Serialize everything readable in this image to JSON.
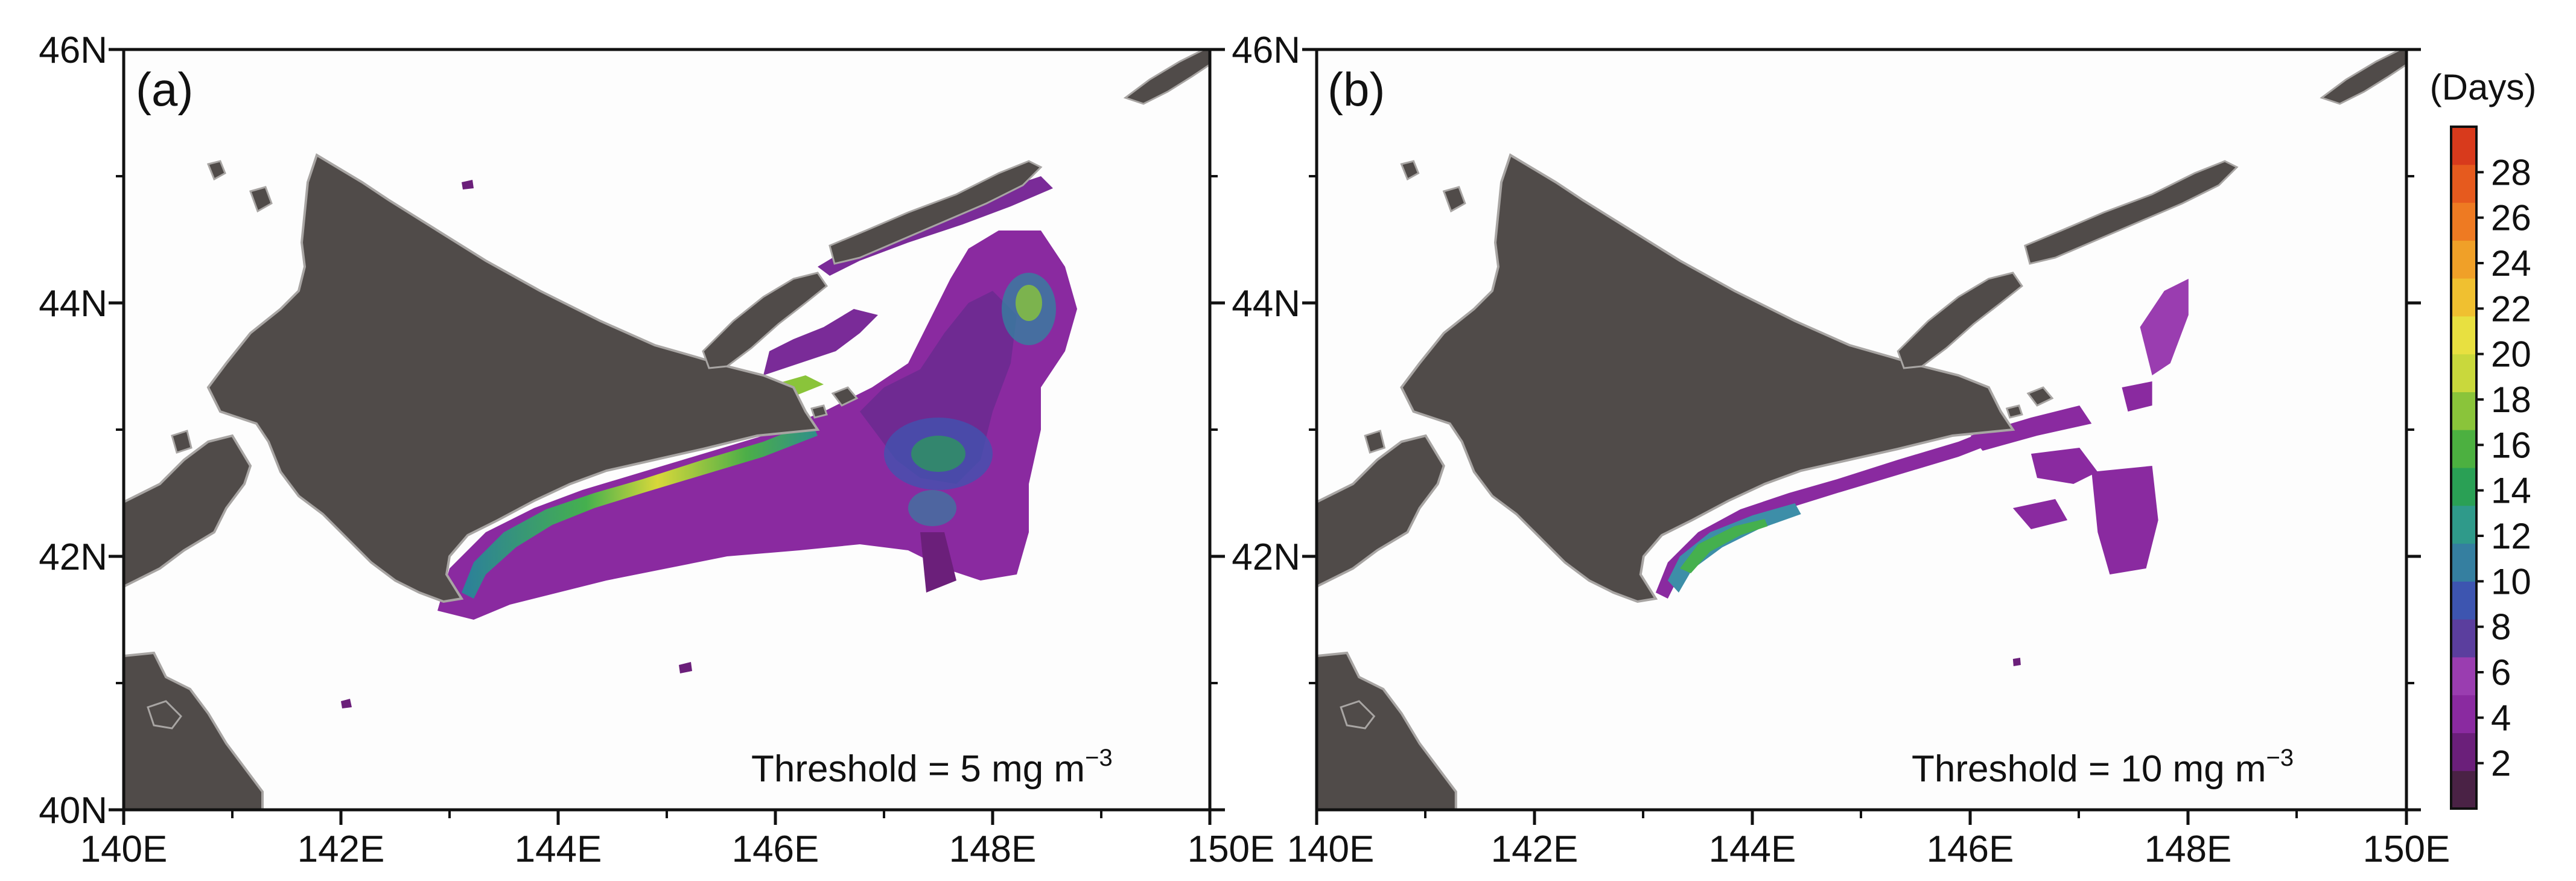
{
  "panels": [
    {
      "label": "(a)",
      "threshold_text": "Threshold = 5 mg m",
      "threshold_exp": "−3",
      "y_ticks": [
        "46N",
        "44N",
        "42N",
        "40N"
      ],
      "x_ticks": [
        "140E",
        "142E",
        "144E",
        "146E",
        "148E",
        "150E"
      ]
    },
    {
      "label": "(b)",
      "threshold_text": "Threshold = 10 mg m",
      "threshold_exp": "−3",
      "y_ticks": [
        "46N",
        "44N",
        "42N",
        "40N"
      ],
      "x_ticks": [
        "140E",
        "142E",
        "144E",
        "146E",
        "148E",
        "150E"
      ]
    }
  ],
  "colorbar": {
    "title": "(Days)",
    "labels": [
      "2",
      "4",
      "6",
      "8",
      "10",
      "12",
      "14",
      "16",
      "18",
      "20",
      "22",
      "24",
      "26",
      "28"
    ],
    "colors": [
      "#4a2245",
      "#6b1f7a",
      "#8a2aa0",
      "#9a3db0",
      "#5b3e9e",
      "#3d55b0",
      "#357fa0",
      "#2f9a8a",
      "#2aa055",
      "#4cb040",
      "#8ac43a",
      "#c9d83c",
      "#e8e040",
      "#f0c030",
      "#f0a028",
      "#ee7a22",
      "#e65a1e",
      "#d83a1c"
    ]
  },
  "colors": {
    "land": "#504b49",
    "land_edge": "#a8a5a3",
    "ocean": "#fdfdfd"
  }
}
